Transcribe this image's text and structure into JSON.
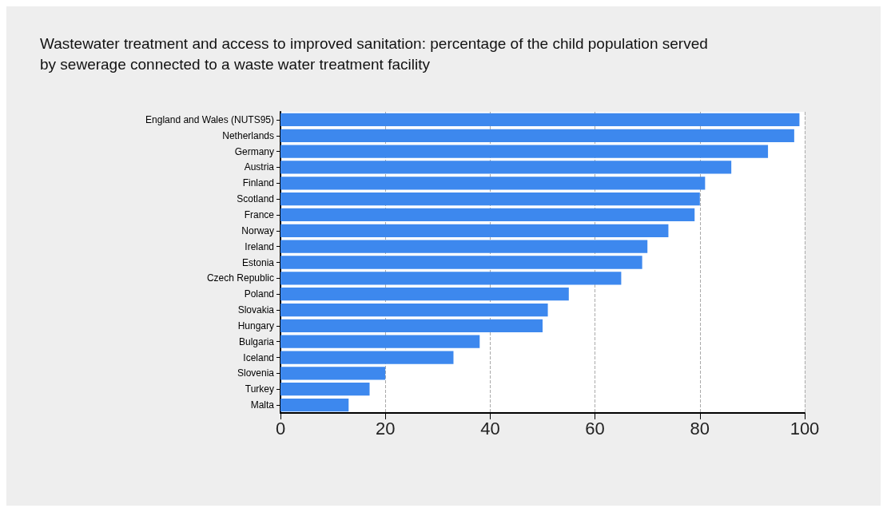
{
  "chart_data": {
    "type": "bar",
    "orientation": "horizontal",
    "title": "Wastewater treatment and access to improved sanitation: percentage of the child population served\nby sewerage connected to a waste water treatment facility",
    "categories": [
      "England and Wales (NUTS95)",
      "Netherlands",
      "Germany",
      "Austria",
      "Finland",
      "Scotland",
      "France",
      "Norway",
      "Ireland",
      "Estonia",
      "Czech Republic",
      "Poland",
      "Slovakia",
      "Hungary",
      "Bulgaria",
      "Iceland",
      "Slovenia",
      "Turkey",
      "Malta"
    ],
    "values": [
      99,
      98,
      93,
      86,
      81,
      80,
      79,
      74,
      70,
      69,
      65,
      55,
      51,
      50,
      38,
      33,
      20,
      17,
      13
    ],
    "color": "#3d88ee",
    "xlim": [
      0,
      100
    ],
    "xticks": [
      0,
      20,
      40,
      60,
      80,
      100
    ],
    "grid": "x"
  }
}
